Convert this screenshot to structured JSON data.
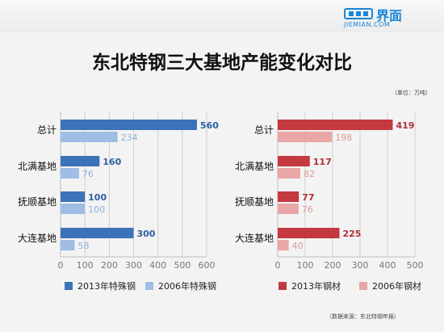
{
  "brand": {
    "name_cn": "界面",
    "name_en": "JIEMIAN.COM",
    "color": "#1a86d8"
  },
  "title": "东北特钢三大基地产能变化对比",
  "unit_note": "（单位：万吨）",
  "source_note": "（数据来源：东北特钢年报）",
  "chart_data": [
    {
      "type": "bar",
      "orientation": "horizontal",
      "categories": [
        "总计",
        "北满基地",
        "抚顺基地",
        "大连基地"
      ],
      "series": [
        {
          "name": "2013年特殊钢",
          "values": [
            560,
            160,
            100,
            300
          ],
          "color": "#3b73b8"
        },
        {
          "name": "2006年特殊钢",
          "values": [
            234,
            76,
            100,
            58
          ],
          "color": "#9fbde5"
        }
      ],
      "xlim": [
        0,
        600
      ],
      "xticks": [
        "0",
        "100",
        "200",
        "300",
        "400",
        "500",
        "600"
      ],
      "grid": true,
      "legend": "bottom"
    },
    {
      "type": "bar",
      "orientation": "horizontal",
      "categories": [
        "总计",
        "北满基地",
        "抚顺基地",
        "大连基地"
      ],
      "series": [
        {
          "name": "2013年钢材",
          "values": [
            419,
            117,
            77,
            225
          ],
          "color": "#c4393f"
        },
        {
          "name": "2006年钢材",
          "values": [
            198,
            82,
            76,
            40
          ],
          "color": "#e8a6a6"
        }
      ],
      "xlim": [
        0,
        500
      ],
      "xticks": [
        "0",
        "100",
        "200",
        "300",
        "400",
        "500"
      ],
      "grid": true,
      "legend": "bottom"
    }
  ]
}
